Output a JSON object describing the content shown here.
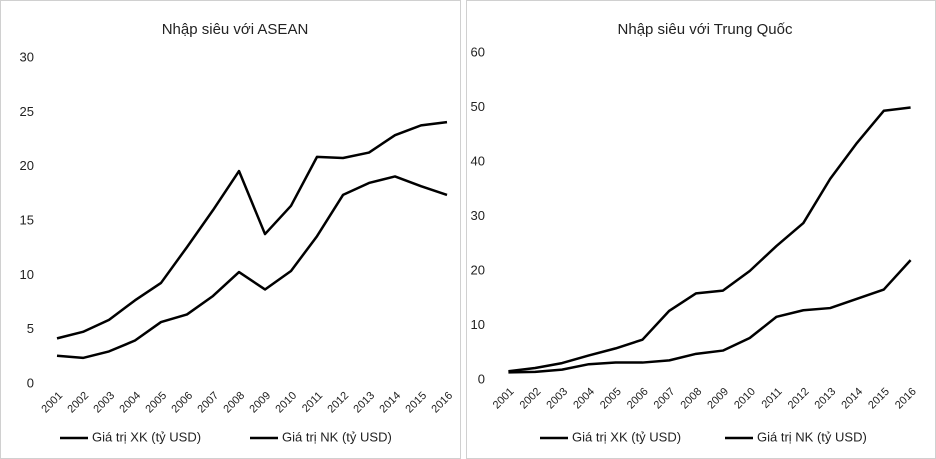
{
  "chart_data": [
    {
      "type": "line",
      "title": "Nhập siêu với ASEAN",
      "categories": [
        "2001",
        "2002",
        "2003",
        "2004",
        "2005",
        "2006",
        "2007",
        "2008",
        "2009",
        "2010",
        "2011",
        "2012",
        "2013",
        "2014",
        "2015",
        "2016"
      ],
      "series": [
        {
          "name": "Giá trị XK (tỷ USD)",
          "color": "#000000",
          "values": [
            2.6,
            2.4,
            3.0,
            4.0,
            5.7,
            6.4,
            8.1,
            10.3,
            8.7,
            10.4,
            13.6,
            17.4,
            18.5,
            19.1,
            18.2,
            17.4
          ]
        },
        {
          "name": "Giá trị NK (tỷ USD)",
          "color": "#000000",
          "values": [
            4.2,
            4.8,
            5.9,
            7.7,
            9.3,
            12.6,
            16.0,
            19.6,
            13.8,
            16.4,
            20.9,
            20.8,
            21.3,
            22.9,
            23.8,
            24.1
          ]
        }
      ],
      "ylim": [
        0,
        30
      ],
      "yticks": [
        0,
        5,
        10,
        15,
        20,
        25,
        30
      ],
      "grid": false,
      "legend": "bottom"
    },
    {
      "type": "line",
      "title": "Nhập siêu với Trung Quốc",
      "categories": [
        "2001",
        "2002",
        "2003",
        "2004",
        "2005",
        "2006",
        "2007",
        "2008",
        "2009",
        "2010",
        "2011",
        "2012",
        "2013",
        "2014",
        "2015",
        "2016"
      ],
      "series": [
        {
          "name": "Giá trị XK (tỷ USD)",
          "color": "#000000",
          "values": [
            1.4,
            1.5,
            1.9,
            2.9,
            3.2,
            3.2,
            3.6,
            4.8,
            5.4,
            7.7,
            11.6,
            12.8,
            13.2,
            14.9,
            16.6,
            22.0
          ]
        },
        {
          "name": "Giá trị NK (tỷ USD)",
          "color": "#000000",
          "values": [
            1.6,
            2.2,
            3.1,
            4.5,
            5.8,
            7.4,
            12.7,
            15.9,
            16.4,
            20.0,
            24.6,
            28.8,
            36.9,
            43.5,
            49.4,
            50.0
          ]
        }
      ],
      "ylim": [
        0,
        60
      ],
      "yticks": [
        0,
        10,
        20,
        30,
        40,
        50,
        60
      ],
      "grid": false,
      "legend": "bottom"
    }
  ]
}
